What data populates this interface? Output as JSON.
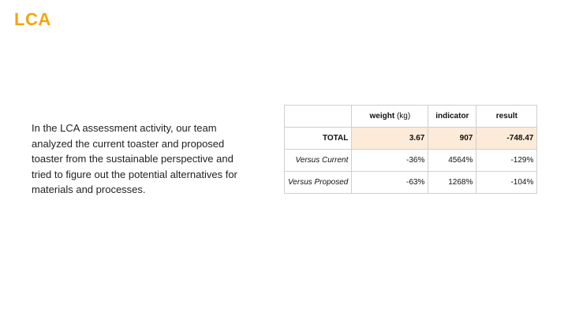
{
  "slide": {
    "title": "LCA",
    "body": "In the LCA assessment activity, our team analyzed the current toaster and proposed toaster from the sustainable perspective and tried to figure out the potential alternatives for materials and processes."
  },
  "table": {
    "headers": {
      "weight_bold": "weight",
      "weight_unit": " (kg)",
      "indicator": "indicator",
      "result": "result"
    },
    "rows": [
      {
        "label": "TOTAL",
        "weight": "3.67",
        "indicator": "907",
        "result": "-748.47"
      },
      {
        "label": "Versus Current",
        "weight": "-36%",
        "indicator": "4564%",
        "result": "-129%"
      },
      {
        "label": "Versus Proposed",
        "weight": "-63%",
        "indicator": "1268%",
        "result": "-104%"
      }
    ]
  },
  "colors": {
    "title": "#f5a40a",
    "highlight": "#fcebd8"
  }
}
